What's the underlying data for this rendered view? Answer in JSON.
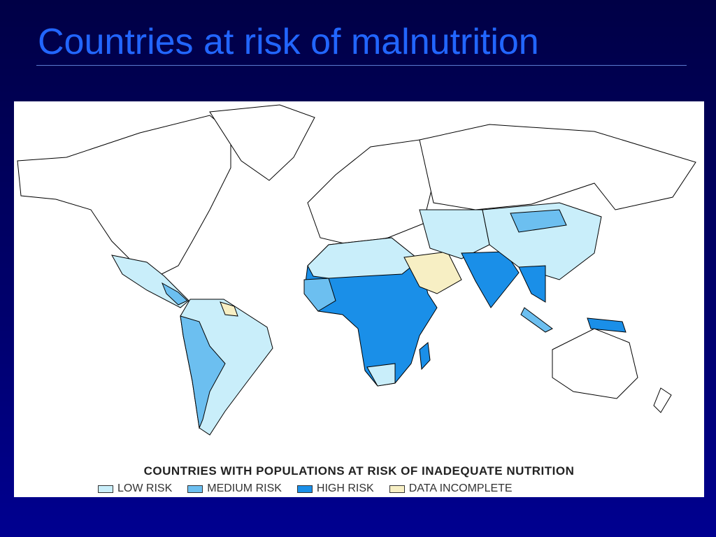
{
  "title": "Countries at risk of malnutrition",
  "map": {
    "legend_title": "COUNTRIES WITH POPULATIONS AT RISK OF INADEQUATE NUTRITION",
    "legend": [
      {
        "label": "LOW RISK",
        "color": "#c9eefa"
      },
      {
        "label": "MEDIUM RISK",
        "color": "#6cbff0"
      },
      {
        "label": "HIGH RISK",
        "color": "#1a8fe8"
      },
      {
        "label": "DATA INCOMPLETE",
        "color": "#f7efc4"
      }
    ]
  }
}
